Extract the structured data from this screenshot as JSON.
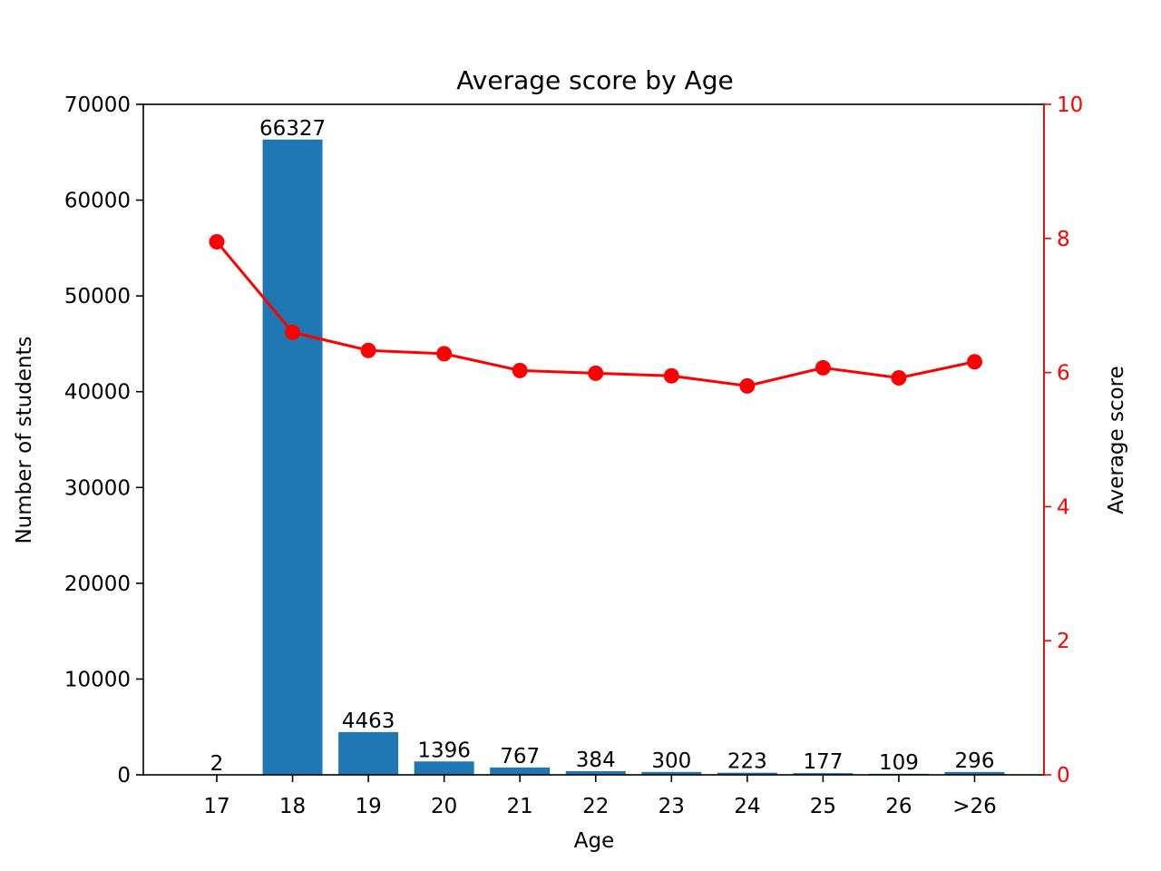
{
  "chart_data": {
    "type": "bar",
    "title": "Average score by Age",
    "xlabel": "Age",
    "ylabel": "Number of students",
    "y2label": "Average score",
    "categories": [
      "17",
      "18",
      "19",
      "20",
      "21",
      "22",
      "23",
      "24",
      "25",
      "26",
      ">26"
    ],
    "ylim": [
      0,
      70000
    ],
    "yticks": [
      0,
      10000,
      20000,
      30000,
      40000,
      50000,
      60000,
      70000
    ],
    "y2lim": [
      0,
      10
    ],
    "y2ticks": [
      0,
      2,
      4,
      6,
      8,
      10
    ],
    "grid": false,
    "series": [
      {
        "type": "bar",
        "axis": "left",
        "color": "#1f77b4",
        "values": [
          2,
          66327,
          4463,
          1396,
          767,
          384,
          300,
          223,
          177,
          109,
          296
        ],
        "labels": [
          "2",
          "66327",
          "4463",
          "1396",
          "767",
          "384",
          "300",
          "223",
          "177",
          "109",
          "296"
        ]
      },
      {
        "type": "line",
        "axis": "right",
        "color": "#ff0000",
        "marker": "circle",
        "values": [
          7.95,
          6.6,
          6.33,
          6.28,
          6.03,
          5.99,
          5.95,
          5.8,
          6.07,
          5.92,
          6.16
        ]
      }
    ]
  }
}
